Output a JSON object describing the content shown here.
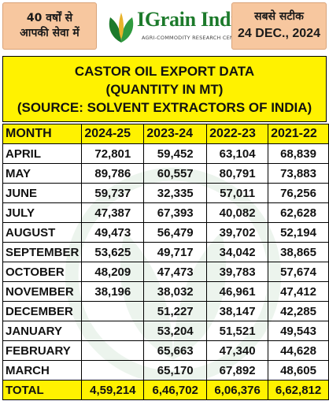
{
  "header": {
    "left_line1": "40 वर्षों से",
    "left_line2": "आपकी सेवा में",
    "brand": "IGrain India",
    "brand_tagline": "AGRI-COMMODITY RESEARCH CENTRE",
    "right_line1": "सबसे सटीक",
    "date": "24 DEC., 2024"
  },
  "title": {
    "line1": "CASTOR OIL EXPORT DATA",
    "line2": "(QUANTITY IN MT)",
    "line3": "(SOURCE: SOLVENT EXTRACTORS OF INDIA)"
  },
  "table": {
    "headers": [
      "MONTH",
      "2024-25",
      "2023-24",
      "2022-23",
      "2021-22"
    ],
    "rows": [
      [
        "APRIL",
        "72,801",
        "59,452",
        "63,104",
        "68,839"
      ],
      [
        "MAY",
        "89,786",
        "60,557",
        "80,791",
        "73,883"
      ],
      [
        "JUNE",
        "59,737",
        "32,335",
        "57,011",
        "76,256"
      ],
      [
        "JULY",
        "47,387",
        "67,393",
        "40,082",
        "62,628"
      ],
      [
        "AUGUST",
        "49,473",
        "56,479",
        "39,702",
        "52,194"
      ],
      [
        "SEPTEMBER",
        "53,625",
        "49,717",
        "34,042",
        "38,865"
      ],
      [
        "OCTOBER",
        "48,209",
        "47,473",
        "39,783",
        "57,674"
      ],
      [
        "NOVEMBER",
        "38,196",
        "38,032",
        "46,961",
        "47,412"
      ],
      [
        "DECEMBER",
        "",
        "51,227",
        "38,147",
        "42,285"
      ],
      [
        "JANUARY",
        "",
        "53,204",
        "51,521",
        "49,543"
      ],
      [
        "FEBRUARY",
        "",
        "65,663",
        "47,340",
        "44,628"
      ],
      [
        "MARCH",
        "",
        "65,170",
        "67,892",
        "48,605"
      ]
    ],
    "total": [
      "TOTAL",
      "4,59,214",
      "6,46,702",
      "6,06,376",
      "6,62,812"
    ]
  },
  "colors": {
    "highlight": "#fff200",
    "header_box": "#f7c79f",
    "brand_green": "#1c7a2b"
  },
  "icons": [
    "grain-logo-icon"
  ]
}
